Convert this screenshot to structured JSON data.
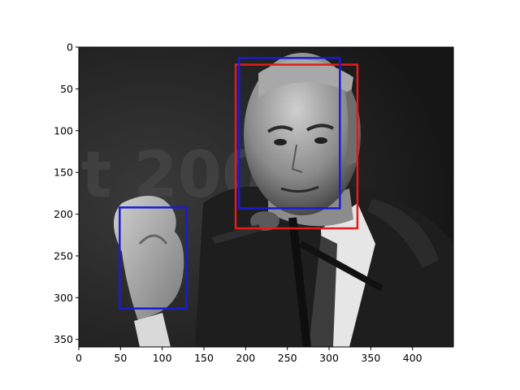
{
  "chart_data": {
    "type": "image_with_bounding_boxes",
    "title": "",
    "xlabel": "",
    "ylabel": "",
    "xlim": [
      0,
      449
    ],
    "ylim": [
      359,
      0
    ],
    "x_ticks": [
      0,
      50,
      100,
      150,
      200,
      250,
      300,
      350,
      400
    ],
    "y_ticks": [
      0,
      50,
      100,
      150,
      200,
      250,
      300,
      350
    ],
    "image": {
      "description_tag": "grayscale-photo-man-speaking-at-microphone",
      "background_text": "t 200"
    },
    "boxes": [
      {
        "name": "red-face-box",
        "color": "#e41a1c",
        "x0": 188,
        "y0": 21,
        "x1": 334,
        "y1": 217
      },
      {
        "name": "blue-face-box",
        "color": "#1a1adb",
        "x0": 192,
        "y0": 13,
        "x1": 313,
        "y1": 193
      },
      {
        "name": "blue-hand-box",
        "color": "#1a1adb",
        "x0": 49,
        "y0": 192,
        "x1": 129,
        "y1": 313
      }
    ]
  },
  "colors": {
    "photo_dark": "#141414",
    "photo_mid": "#5a5a5a",
    "photo_light": "#d8d8d8"
  }
}
